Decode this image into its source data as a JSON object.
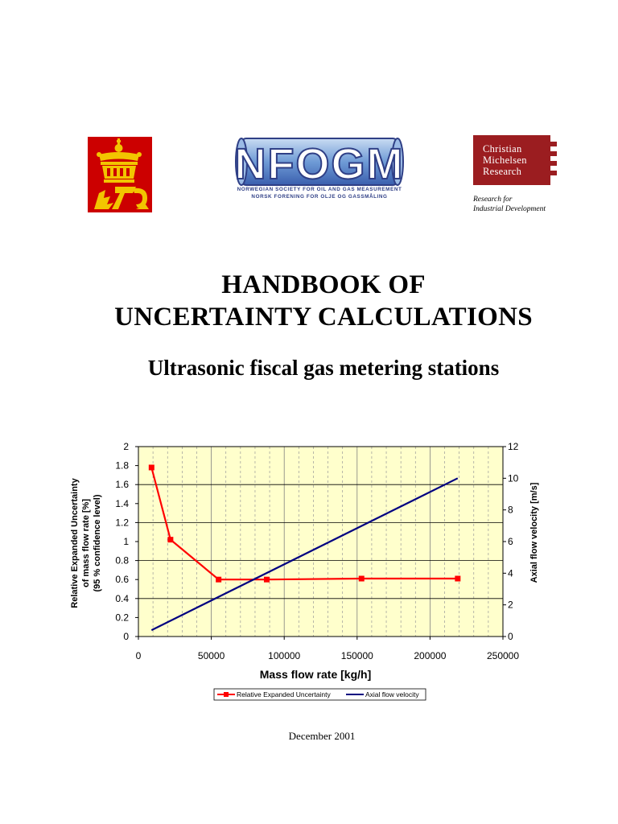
{
  "header": {
    "nfogm_logo_text": "NFOGM",
    "nfogm_line1": "NORWEGIAN SOCIETY FOR OIL AND GAS MEASUREMENT",
    "nfogm_line2": "NORSK FORENING FOR OLJE OG GASSMÅLING",
    "cmr_line1": "Christian",
    "cmr_line2": "Michelsen",
    "cmr_line3": "Research",
    "cmr_tagline1": "Research for",
    "cmr_tagline2": "Industrial Development"
  },
  "title_line1": "HANDBOOK OF",
  "title_line2": "UNCERTAINTY CALCULATIONS",
  "subtitle": "Ultrasonic fiscal gas metering stations",
  "date": "December 2001",
  "colors": {
    "plot_background": "#ffffcc",
    "uncertainty_series": "#ff0000",
    "velocity_series": "#000080",
    "cmr_brand": "#9b1d20",
    "norway_red": "#cc0000",
    "norway_gold": "#f2c500"
  },
  "chart_data": {
    "type": "line",
    "xlabel": "Mass flow rate  [kg/h]",
    "ylabel": "Relative Expanded Uncertainty of mass flow rate [%] (95 % confidence level)",
    "ylabel_lines": [
      "Relative Expanded Uncertainty",
      "of mass flow rate [%]",
      "(95 % confidence level)"
    ],
    "y2label": "Axial flow velocity  [m/s]",
    "xlim": [
      0,
      250000
    ],
    "ylim": [
      0,
      2
    ],
    "y2lim": [
      0,
      12
    ],
    "x_ticks": [
      "0",
      "50000",
      "100000",
      "150000",
      "200000",
      "250000"
    ],
    "y_ticks": [
      "0",
      "0.2",
      "0.4",
      "0.6",
      "0.8",
      "1",
      "1.2",
      "1.4",
      "1.6",
      "1.8",
      "2"
    ],
    "y2_ticks": [
      "0",
      "2",
      "4",
      "6",
      "8",
      "10",
      "12"
    ],
    "grid": true,
    "legend_position": "bottom",
    "series": [
      {
        "name": "Relative Expanded Uncertainty",
        "axis": "left",
        "marker": "square",
        "x": [
          9000,
          22000,
          55000,
          88000,
          153000,
          219000
        ],
        "y": [
          1.78,
          1.02,
          0.6,
          0.6,
          0.61,
          0.61
        ]
      },
      {
        "name": "Axial flow velocity",
        "axis": "right",
        "marker": "none",
        "x": [
          9000,
          219000
        ],
        "y": [
          0.4,
          10
        ]
      }
    ]
  }
}
